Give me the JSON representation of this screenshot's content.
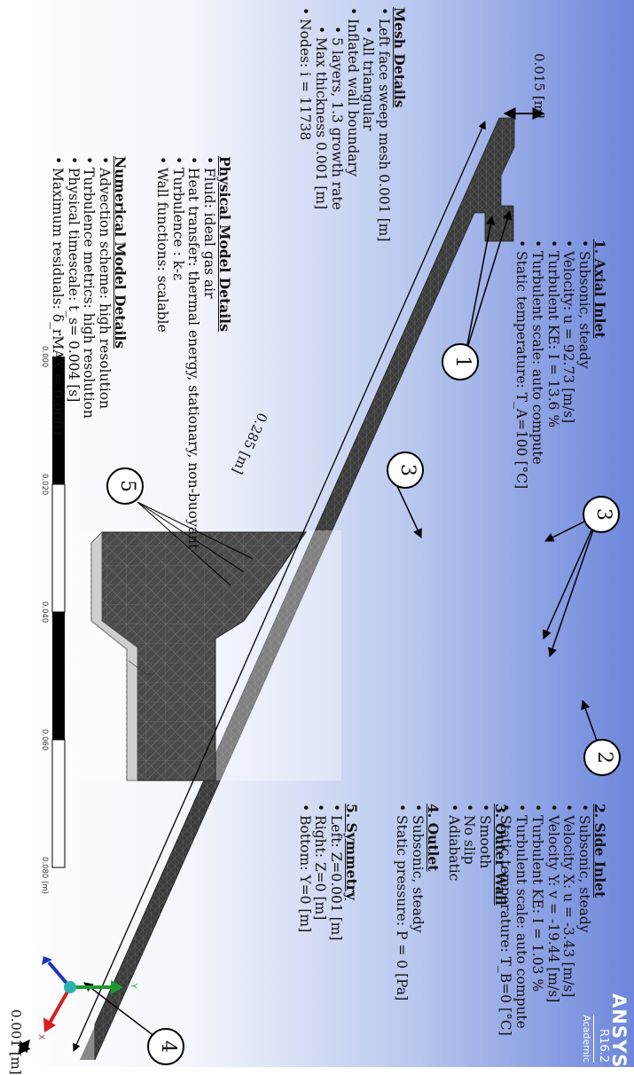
{
  "logo": {
    "name": "ANSYS",
    "version": "R16.2",
    "edition": "Academic"
  },
  "dimensions": {
    "height": "0.015 [m]",
    "length": "0.285 [m]",
    "depth": "0.001 [m]"
  },
  "callouts": [
    "1",
    "2",
    "3",
    "4",
    "5"
  ],
  "axial_inlet": {
    "title": "1. Axial Inlet",
    "items": [
      "Subsonic, steady",
      "Velocity: u = 92.73 [m/s]",
      "Turbulent KE: I = 13.6 %",
      "Turbulent scale: auto compute",
      "Static temperature: T_A=100 [°C]"
    ]
  },
  "side_inlet": {
    "title": "2. Side Inlet",
    "items": [
      "Subsonic, steady",
      "Velocity X: u = -3.43 [m/s]",
      "Velocity Y: v = -19.44 [m/s]",
      "Turbulent KE: I = 1.03 %",
      "Turbulent scale: auto compute",
      "Static temperature: T_B=0 [°C]"
    ]
  },
  "outer_wall": {
    "title": "3. Outer Wall",
    "items": [
      "Smooth",
      "No slip",
      "Adiabatic"
    ]
  },
  "outlet": {
    "title": "4. Outlet",
    "items": [
      "Subsonic, steady",
      "Static pressure: P = 0 [Pa]"
    ]
  },
  "symmetry": {
    "title": "5. Symmetry",
    "items": [
      "Left: Z=0.001 [m]",
      "Right: Z=0 [m]",
      "Bottom: Y=0 [m]"
    ]
  },
  "mesh_details": {
    "title": "Mesh Details",
    "items": [
      "Left face sweep mesh 0.001 [m]",
      "All triangular",
      "Inflated wall boundary",
      "5 layers, 1.3 growth rate",
      "Max thickness 0.001 [m]",
      "Nodes: i = 11738"
    ]
  },
  "physical_model": {
    "title": "Physical Model Details",
    "items": [
      "Fluid: ideal gas air",
      "Heat transfer: thermal energy, stationary, non-buoyant",
      "Turbulence : k-ε",
      "Wall functions: scalable"
    ]
  },
  "numerical_model": {
    "title": "Numerical Model Details",
    "items": [
      "Advection scheme: high resolution",
      "Turbulence metrics: high resolution",
      "Physical timescale: t_s= 0.004 [s]",
      "Maximum residuals: δ_rMAX = 0.0001"
    ]
  },
  "scale_bar": {
    "ticks": [
      "0.000",
      "0.020",
      "0.040",
      "0.060",
      "0.080 (m)"
    ]
  },
  "triad": {
    "x": "X",
    "y": "Y"
  },
  "colors": {
    "background_end": "#6d86db",
    "mesh": "#3a3a3a",
    "triad_x": "#d42020",
    "triad_y": "#1e9a2e",
    "triad_z": "#1a32c8",
    "triad_origin": "#2ab0b0"
  }
}
